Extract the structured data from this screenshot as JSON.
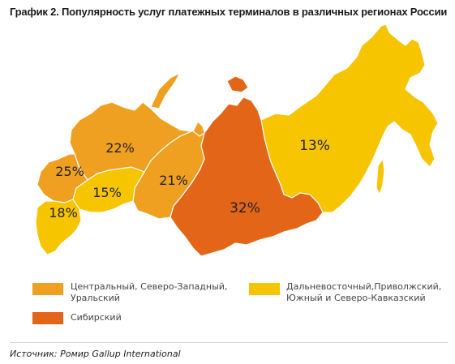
{
  "title": "График 2. Популярность услуг платежных терминалов в различных регионах России",
  "colors": {
    "central_nw_ural": "#F0A020",
    "siberian": "#E26518",
    "fareast_volga_south": "#F7C400",
    "border": "#ffffff"
  },
  "regions": [
    {
      "name": "Северо-Западный",
      "value": "22%",
      "group": "central_nw_ural"
    },
    {
      "name": "Центральный",
      "value": "25%",
      "group": "central_nw_ural"
    },
    {
      "name": "Приволжский",
      "value": "15%",
      "group": "fareast_volga_south"
    },
    {
      "name": "Южный и Северо-Кавказский",
      "value": "18%",
      "group": "fareast_volga_south"
    },
    {
      "name": "Уральский",
      "value": "21%",
      "group": "central_nw_ural"
    },
    {
      "name": "Сибирский",
      "value": "32%",
      "group": "siberian"
    },
    {
      "name": "Дальневосточный",
      "value": "13%",
      "group": "fareast_volga_south"
    }
  ],
  "legend": [
    {
      "label": "Центральный, Северо-Западный, Уральский",
      "line1": "Центральный, Северо-Западный,",
      "line2": "Уральский",
      "group": "central_nw_ural"
    },
    {
      "label": "Дальневосточный,Приволжский, Южный и Северо-Кавказский",
      "line1": "Дальневосточный,Приволжский,",
      "line2": "Южный и Северо-Кавказский",
      "group": "fareast_volga_south"
    },
    {
      "label": "Сибирский",
      "line1": "Сибирский",
      "line2": "",
      "group": "siberian"
    }
  ],
  "source": "Источник: Ромир Gallup International"
}
